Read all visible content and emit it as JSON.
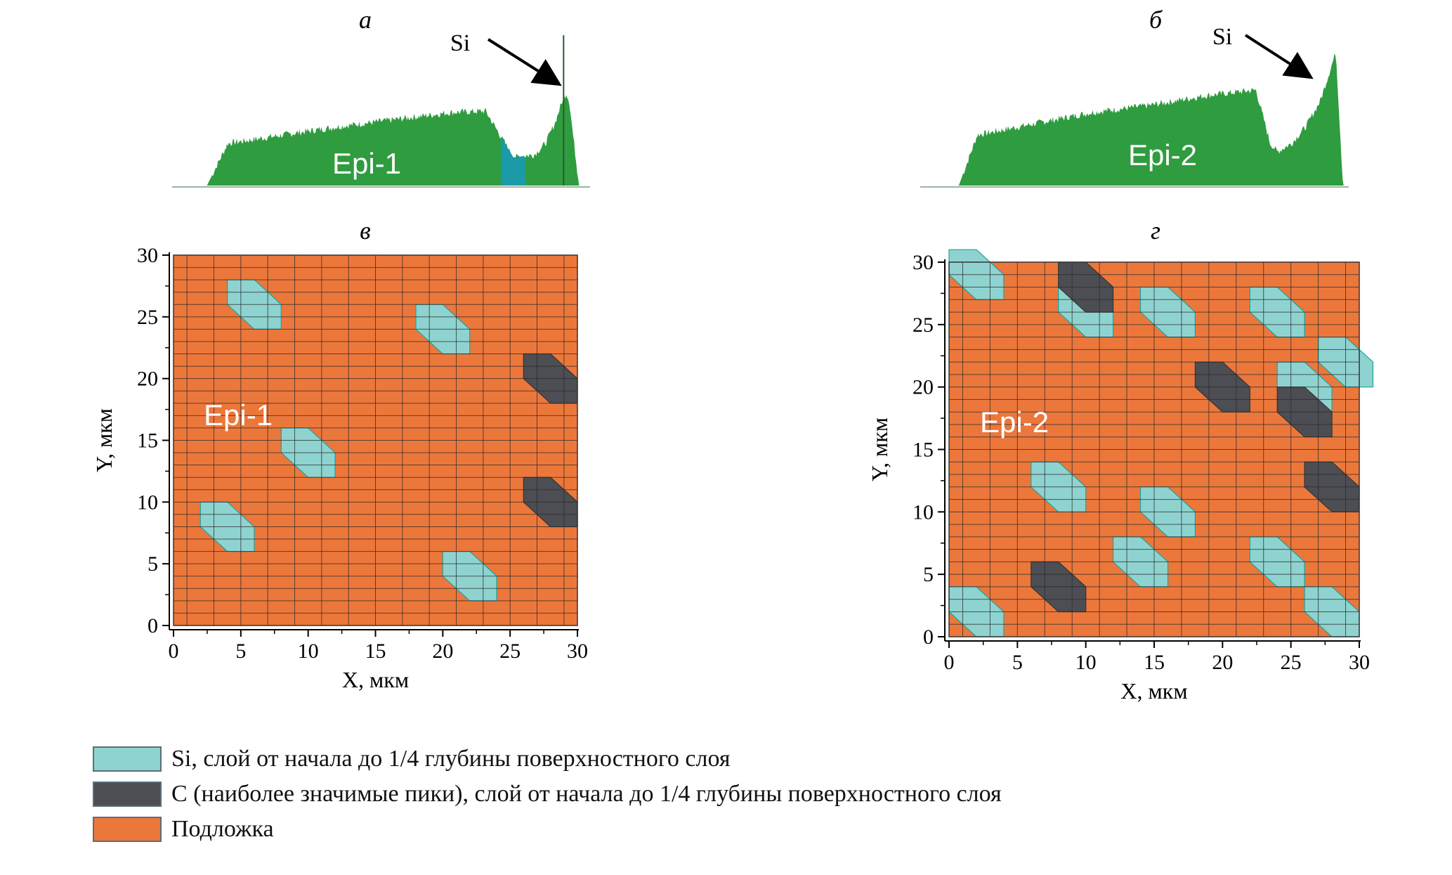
{
  "colors": {
    "si": "#8fd3d0",
    "si_edge": "#1aa3a0",
    "c": "#4d4e53",
    "substrate": "#ec773b",
    "spectrum_green": "#2f9c3f",
    "spectrum_teal": "#1b9aa7",
    "grid": "#2a2a2a"
  },
  "panels": {
    "a": {
      "letter": "а",
      "sample": "Epi-1",
      "peak_label": "Si"
    },
    "b": {
      "letter": "б",
      "sample": "Epi-2",
      "peak_label": "Si"
    },
    "v": {
      "letter": "в",
      "sample": "Epi-1"
    },
    "g": {
      "letter": "г",
      "sample": "Epi-2"
    }
  },
  "chart_data": [
    {
      "type": "area",
      "panel": "а",
      "annotation": "Si",
      "label": "Epi-1",
      "x": [
        0,
        2.5,
        4,
        8,
        12,
        16,
        20,
        22.5,
        24.5,
        26,
        26.8,
        27.5,
        28,
        28.3,
        28.5,
        29.2,
        30
      ],
      "y": [
        0,
        0,
        0.3,
        0.36,
        0.42,
        0.47,
        0.52,
        0.53,
        0.2,
        0.22,
        0.3,
        0.45,
        0.6,
        0.66,
        0.6,
        0,
        0
      ]
    },
    {
      "type": "area",
      "panel": "б",
      "annotation": "Si",
      "label": "Epi-2",
      "x": [
        0,
        2.7,
        4,
        8,
        12,
        16,
        20,
        23.5,
        24.5,
        25,
        26,
        27,
        28,
        29.1,
        29.6,
        30
      ],
      "y": [
        0,
        0,
        0.36,
        0.44,
        0.52,
        0.57,
        0.64,
        0.68,
        0.3,
        0.24,
        0.3,
        0.42,
        0.6,
        0.95,
        0,
        0
      ]
    },
    {
      "type": "heatmap",
      "panel": "в",
      "label": "Epi-1",
      "xlabel": "X, мкм",
      "ylabel": "Y, мкм",
      "xlim": [
        0,
        30
      ],
      "ylim": [
        0,
        30
      ],
      "xticks": [
        0,
        5,
        10,
        15,
        20,
        25,
        30
      ],
      "yticks": [
        0,
        5,
        10,
        15,
        20,
        25,
        30
      ],
      "clusters": [
        {
          "class": "Si",
          "x": 6,
          "y": 26
        },
        {
          "class": "Si",
          "x": 20,
          "y": 24
        },
        {
          "class": "Si",
          "x": 10,
          "y": 14
        },
        {
          "class": "Si",
          "x": 4,
          "y": 8
        },
        {
          "class": "Si",
          "x": 22,
          "y": 4
        },
        {
          "class": "C",
          "x": 28,
          "y": 20
        },
        {
          "class": "C",
          "x": 28,
          "y": 10
        }
      ]
    },
    {
      "type": "heatmap",
      "panel": "г",
      "label": "Epi-2",
      "xlabel": "X, мкм",
      "ylabel": "Y, мкм",
      "xlim": [
        0,
        30
      ],
      "ylim": [
        0,
        30
      ],
      "xticks": [
        0,
        5,
        10,
        15,
        20,
        25,
        30
      ],
      "yticks": [
        0,
        5,
        10,
        15,
        20,
        25,
        30
      ],
      "clusters": [
        {
          "class": "Si",
          "x": 2,
          "y": 29
        },
        {
          "class": "Si",
          "x": 10,
          "y": 26
        },
        {
          "class": "Si",
          "x": 16,
          "y": 26
        },
        {
          "class": "Si",
          "x": 24,
          "y": 26
        },
        {
          "class": "Si",
          "x": 29,
          "y": 22
        },
        {
          "class": "Si",
          "x": 26,
          "y": 20
        },
        {
          "class": "Si",
          "x": 8,
          "y": 12
        },
        {
          "class": "Si",
          "x": 16,
          "y": 10
        },
        {
          "class": "Si",
          "x": 14,
          "y": 6
        },
        {
          "class": "Si",
          "x": 24,
          "y": 6
        },
        {
          "class": "Si",
          "x": 2,
          "y": 2
        },
        {
          "class": "Si",
          "x": 28,
          "y": 2
        },
        {
          "class": "C",
          "x": 10,
          "y": 28
        },
        {
          "class": "C",
          "x": 20,
          "y": 20
        },
        {
          "class": "C",
          "x": 26,
          "y": 18
        },
        {
          "class": "C",
          "x": 28,
          "y": 12
        },
        {
          "class": "C",
          "x": 8,
          "y": 4
        }
      ]
    }
  ],
  "legend": [
    {
      "key": "si",
      "label": "Si, слой от начала до 1/4 глубины поверхностного слоя"
    },
    {
      "key": "c",
      "label": "C (наиболее значимые пики), слой от начала до 1/4 глубины поверхностного слоя"
    },
    {
      "key": "substrate",
      "label": "Подложка"
    }
  ]
}
